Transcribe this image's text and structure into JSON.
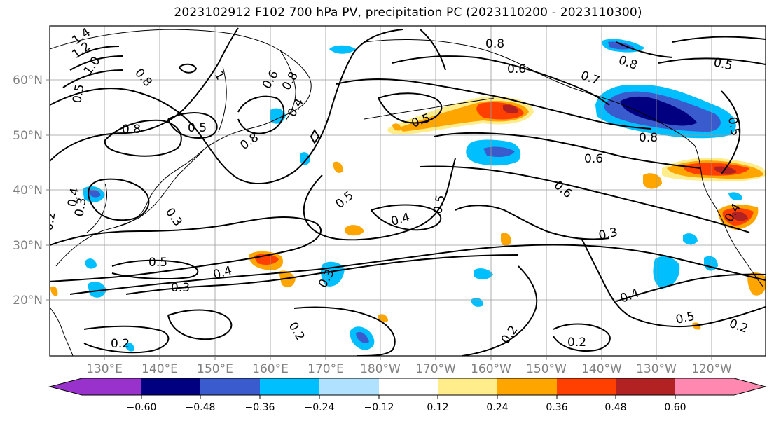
{
  "title": "2023102912 F102 700 hPa PV, precipitation PC (2023110200 - 2023110300)",
  "lat_labels": [
    "60°N",
    "50°N",
    "40°N",
    "30°N",
    "20°N"
  ],
  "lon_labels": [
    "130°E",
    "140°E",
    "150°E",
    "160°E",
    "170°E",
    "180°W",
    "170°W",
    "160°W",
    "150°W",
    "140°W",
    "130°W",
    "120°W"
  ],
  "colorbar": {
    "colors": [
      "#9932cc",
      "#000080",
      "#3a5bcd",
      "#00bfff",
      "#b0e2ff",
      "#ffffff",
      "#ffec8b",
      "#ffa500",
      "#ff4000",
      "#b22222",
      "#ff88b0"
    ],
    "ticks": [
      "−0.60",
      "−0.48",
      "−0.36",
      "−0.24",
      "−0.12",
      "0.12",
      "0.24",
      "0.36",
      "0.48",
      "0.60"
    ]
  },
  "contour_labels": [
    "1.4",
    "1.2",
    "1.0",
    "0.8",
    "0.5",
    "0.8",
    "0.8",
    "0.6",
    "0.4",
    "0.8",
    "0.5",
    "0.8",
    "0.6",
    "0.7",
    "0.8",
    "0.5",
    "0.5",
    "0.8",
    "0.6",
    "0.6",
    "0.5",
    "0.5",
    "0.4",
    "0.5",
    "0.3",
    "0.4",
    "0.3",
    "0.3",
    "0.4",
    "0.2",
    "0.2",
    "0.2",
    "0.2",
    "0.5",
    "0.2",
    "0.3",
    "1",
    "0.5",
    "0.3",
    "0.6",
    "0.4",
    "0.2",
    "0.4"
  ]
}
